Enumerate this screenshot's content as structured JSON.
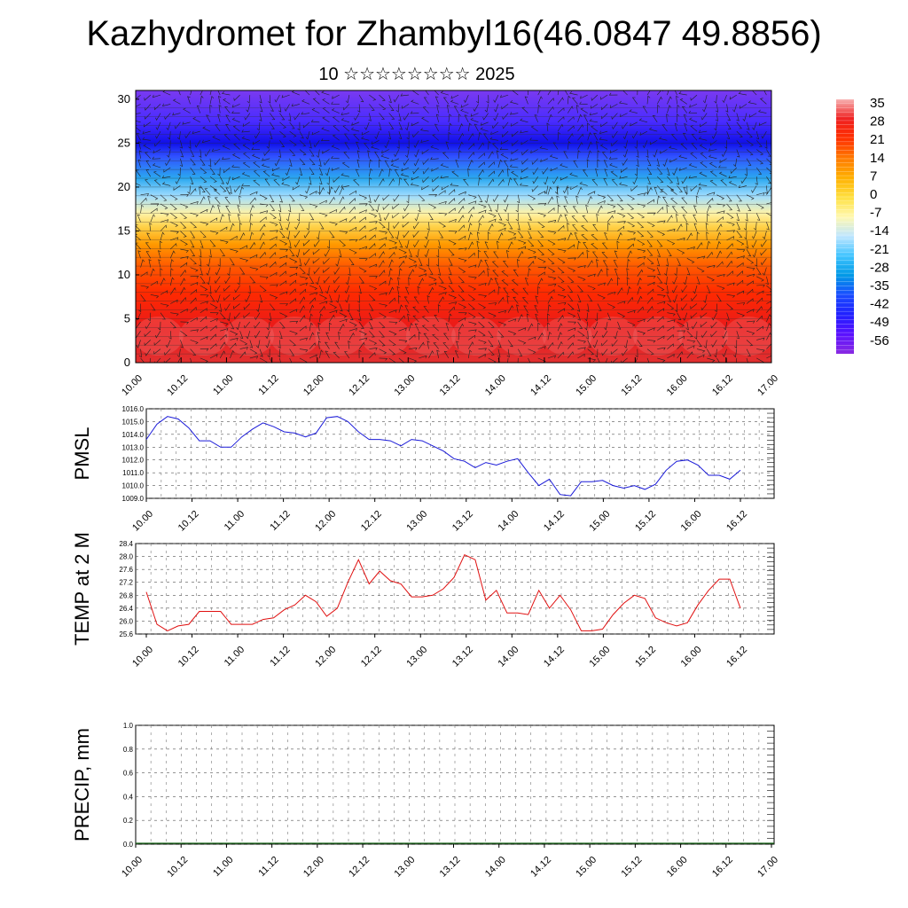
{
  "title": "Kazhydromet for Zhambyl16(46.0847 49.8856)",
  "subtitle": "10 ☆☆☆☆☆☆☆☆ 2025",
  "time_labels": [
    "10.00",
    "10.12",
    "11.00",
    "11.12",
    "12.00",
    "12.12",
    "13.00",
    "13.12",
    "14.00",
    "14.12",
    "15.00",
    "15.12",
    "16.00",
    "16.12",
    "17.00"
  ],
  "colorbar": {
    "labels": [
      "35",
      "28",
      "21",
      "14",
      "7",
      "0",
      "-7",
      "-14",
      "-21",
      "-28",
      "-35",
      "-42",
      "-49",
      "-56"
    ],
    "colors": [
      "#f7b0b0",
      "#ef2020",
      "#ff3000",
      "#ff7a00",
      "#ffb000",
      "#ffe040",
      "#fff8b0",
      "#bfe6ff",
      "#40c4ff",
      "#0099e6",
      "#1a4cff",
      "#2020ff",
      "#5a10ff",
      "#8a2be2"
    ]
  },
  "chart_data": [
    {
      "type": "heatmap",
      "name": "cross-section",
      "ylabel": "",
      "ylim": [
        0,
        30
      ],
      "yticks": [
        "0",
        "5",
        "10",
        "15",
        "20",
        "25",
        "30"
      ],
      "x": [
        "10.00",
        "10.12",
        "11.00",
        "11.12",
        "12.00",
        "12.12",
        "13.00",
        "13.12",
        "14.00",
        "14.12",
        "15.00",
        "15.12",
        "16.00",
        "16.12",
        "17.00"
      ],
      "colorscale": [
        {
          "level": 0,
          "color": "#e23030"
        },
        {
          "level": 4,
          "color": "#ea1a1a"
        },
        {
          "level": 8,
          "color": "#ff2a00"
        },
        {
          "level": 11,
          "color": "#ff5a00"
        },
        {
          "level": 13.5,
          "color": "#ff9a00"
        },
        {
          "level": 15.5,
          "color": "#ffd24a"
        },
        {
          "level": 17,
          "color": "#fff3a8"
        },
        {
          "level": 19,
          "color": "#9edcff"
        },
        {
          "level": 21,
          "color": "#2aa8f0"
        },
        {
          "level": 23.5,
          "color": "#3050ff"
        },
        {
          "level": 25,
          "color": "#1010e8"
        },
        {
          "level": 27.5,
          "color": "#4a2cff"
        },
        {
          "level": 31,
          "color": "#7a3af0"
        }
      ],
      "wind_barbs": true
    },
    {
      "type": "line",
      "ylabel": "PMSL",
      "ylim": [
        1009.0,
        1016.0
      ],
      "yticks": [
        "1009.0",
        "1010.0",
        "1011.0",
        "1012.0",
        "1013.0",
        "1014.0",
        "1015.0",
        "1016.0"
      ],
      "color": "#1a1ad8",
      "x_start": 10.0,
      "x_step_hours": 3,
      "values": [
        1013.6,
        1014.8,
        1015.4,
        1015.2,
        1014.5,
        1013.5,
        1013.5,
        1013.0,
        1013.0,
        1013.8,
        1014.4,
        1014.9,
        1014.6,
        1014.2,
        1014.1,
        1013.8,
        1014.1,
        1015.3,
        1015.4,
        1015.0,
        1014.2,
        1013.6,
        1013.6,
        1013.5,
        1013.1,
        1013.6,
        1013.5,
        1013.1,
        1012.7,
        1012.1,
        1011.9,
        1011.4,
        1011.8,
        1011.6,
        1011.9,
        1012.1,
        1011.0,
        1010.0,
        1010.5,
        1009.3,
        1009.2,
        1010.3,
        1010.3,
        1010.4,
        1010.0,
        1009.8,
        1010.0,
        1009.7,
        1010.1,
        1011.2,
        1011.9,
        1012.0,
        1011.6,
        1010.8,
        1010.8,
        1010.5,
        1011.2
      ]
    },
    {
      "type": "line",
      "ylabel": "TEMP at 2 M",
      "ylim": [
        25.6,
        28.4
      ],
      "yticks": [
        "25.6",
        "26.0",
        "26.4",
        "26.8",
        "27.2",
        "27.6",
        "28.0",
        "28.4"
      ],
      "color": "#e01010",
      "x_start": 10.0,
      "x_step_hours": 3,
      "values": [
        26.9,
        25.9,
        25.7,
        25.85,
        25.9,
        26.3,
        26.3,
        26.3,
        25.9,
        25.9,
        25.9,
        26.05,
        26.1,
        26.35,
        26.5,
        26.8,
        26.6,
        26.15,
        26.4,
        27.2,
        27.9,
        27.15,
        27.55,
        27.25,
        27.15,
        26.75,
        26.75,
        26.8,
        27.0,
        27.35,
        28.05,
        27.9,
        26.65,
        26.95,
        26.25,
        26.25,
        26.2,
        26.95,
        26.4,
        26.8,
        26.35,
        25.7,
        25.7,
        25.75,
        26.2,
        26.55,
        26.8,
        26.7,
        26.1,
        25.95,
        25.85,
        25.95,
        26.5,
        26.95,
        27.3,
        27.3,
        26.4
      ]
    },
    {
      "type": "line",
      "ylabel": "PRECIP, mm",
      "ylim": [
        0.0,
        1.0
      ],
      "yticks": [
        "0.0",
        "0.2",
        "0.4",
        "0.6",
        "0.8",
        "1.0"
      ],
      "color": "#1a6a1a",
      "values": []
    }
  ]
}
